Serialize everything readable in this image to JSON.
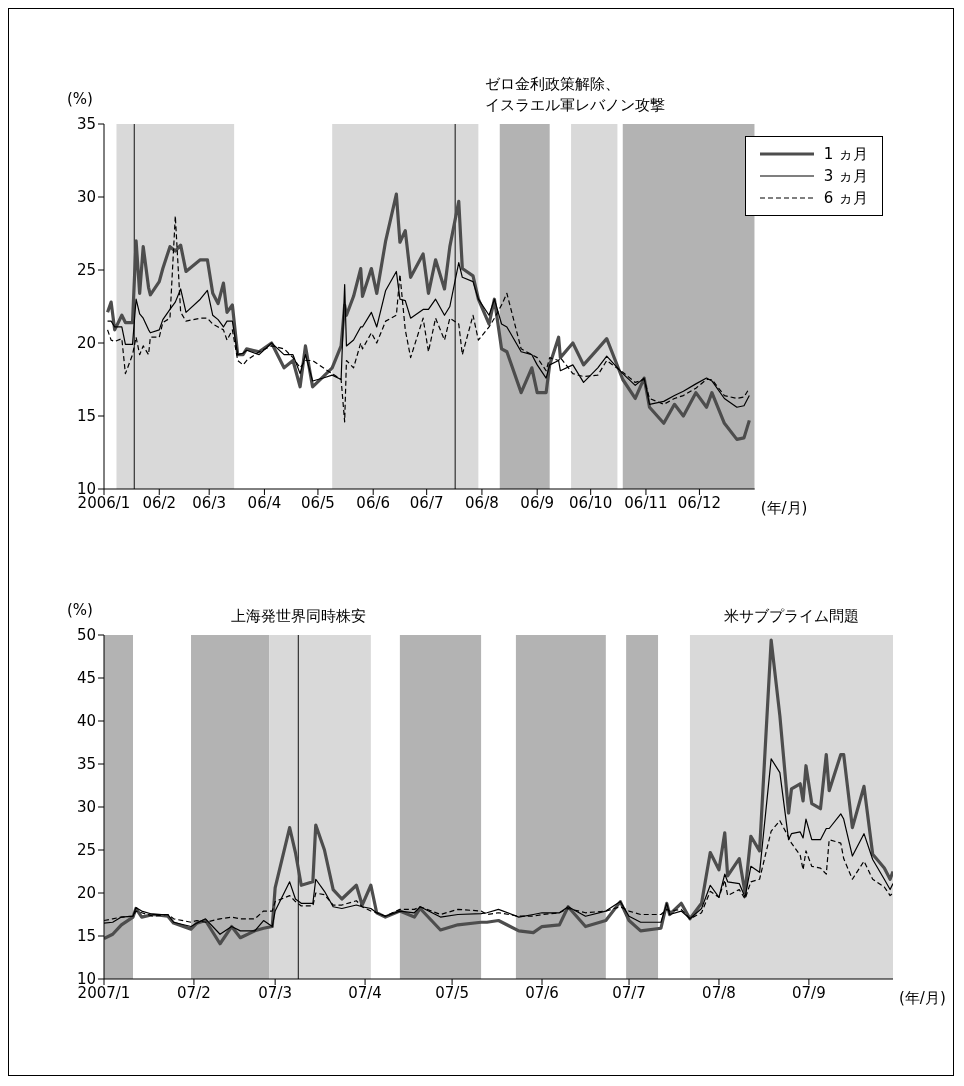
{
  "chart_data": [
    {
      "type": "line",
      "ylabel": "(%)",
      "xlabel": "(年/月)",
      "legend": "top right",
      "xlim": [
        "2006-01-01",
        "2007-01-01"
      ],
      "xticks": [
        {
          "value": "2006-01-01",
          "label": "2006/1"
        },
        {
          "value": "2006-02-01",
          "label": "06/2"
        },
        {
          "value": "2006-03-01",
          "label": "06/3"
        },
        {
          "value": "2006-04-01",
          "label": "06/4"
        },
        {
          "value": "2006-05-01",
          "label": "06/5"
        },
        {
          "value": "2006-06-01",
          "label": "06/6"
        },
        {
          "value": "2006-07-01",
          "label": "06/7"
        },
        {
          "value": "2006-08-01",
          "label": "06/8"
        },
        {
          "value": "2006-09-01",
          "label": "06/9"
        },
        {
          "value": "2006-10-01",
          "label": "06/10"
        },
        {
          "value": "2006-11-01",
          "label": "06/11"
        },
        {
          "value": "2006-12-01",
          "label": "06/12"
        }
      ],
      "ylim": [
        10,
        35
      ],
      "yticks": [
        10,
        15,
        20,
        25,
        30,
        35
      ],
      "bands": [
        {
          "axis": "x",
          "from": "2006-01-08",
          "to": "2006-03-15",
          "color": "#d9d9d9"
        },
        {
          "axis": "x",
          "from": "2006-05-09",
          "to": "2006-07-30",
          "color": "#d9d9d9"
        },
        {
          "axis": "x",
          "from": "2006-08-11",
          "to": "2006-09-08",
          "color": "#b3b3b3"
        },
        {
          "axis": "x",
          "from": "2006-09-20",
          "to": "2006-10-16",
          "color": "#d9d9d9"
        },
        {
          "axis": "x",
          "from": "2006-10-19",
          "to": "2007-01-01",
          "color": "#b3b3b3"
        }
      ],
      "ref_lines": [
        {
          "axis": "x",
          "value": "2006-01-18",
          "color": "#333333"
        },
        {
          "axis": "x",
          "value": "2006-07-17",
          "label": "ゼロ金利政策解除、イスラエル軍レバノン攻撃",
          "color": "#333333"
        }
      ],
      "x": [
        "2006-01-03",
        "2006-01-05",
        "2006-01-07",
        "2006-01-11",
        "2006-01-13",
        "2006-01-17",
        "2006-01-19",
        "2006-01-21",
        "2006-01-23",
        "2006-01-26",
        "2006-01-27",
        "2006-02-01",
        "2006-02-03",
        "2006-02-07",
        "2006-02-10",
        "2006-02-13",
        "2006-02-16",
        "2006-02-24",
        "2006-02-28",
        "2006-03-03",
        "2006-03-06",
        "2006-03-09",
        "2006-03-11",
        "2006-03-14",
        "2006-03-17",
        "2006-03-20",
        "2006-03-22",
        "2006-03-29",
        "2006-04-05",
        "2006-04-12",
        "2006-04-17",
        "2006-04-21",
        "2006-04-24",
        "2006-04-28",
        "2006-05-04",
        "2006-05-09",
        "2006-05-14",
        "2006-05-16",
        "2006-05-17",
        "2006-05-21",
        "2006-05-25",
        "2006-05-26",
        "2006-05-31",
        "2006-06-03",
        "2006-06-08",
        "2006-06-14",
        "2006-06-16",
        "2006-06-19",
        "2006-06-22",
        "2006-06-29",
        "2006-07-02",
        "2006-07-06",
        "2006-07-11",
        "2006-07-14",
        "2006-07-19",
        "2006-07-21",
        "2006-07-27",
        "2006-07-30",
        "2006-08-05",
        "2006-08-08",
        "2006-08-12",
        "2006-08-15",
        "2006-08-23",
        "2006-08-29",
        "2006-09-01",
        "2006-09-06",
        "2006-09-08",
        "2006-09-13",
        "2006-09-14",
        "2006-09-21",
        "2006-09-27",
        "2006-10-05",
        "2006-10-10",
        "2006-10-19",
        "2006-10-26",
        "2006-10-31",
        "2006-11-03",
        "2006-11-11",
        "2006-11-17",
        "2006-11-22",
        "2006-11-29",
        "2006-12-05",
        "2006-12-08",
        "2006-12-15",
        "2006-12-22",
        "2006-12-26",
        "2006-12-29"
      ],
      "series": [
        {
          "name": "1 ヵ月",
          "color": "#4d4d4d",
          "line_style": "solid",
          "values": [
            22.1,
            22.8,
            20.9,
            21.9,
            21.4,
            21.4,
            27.0,
            23.4,
            26.6,
            23.8,
            23.3,
            24.2,
            25.1,
            26.6,
            26.3,
            26.7,
            24.9,
            25.7,
            25.7,
            23.4,
            22.7,
            24.1,
            22.1,
            22.6,
            19.2,
            19.2,
            19.6,
            19.4,
            20.0,
            18.3,
            18.8,
            17.0,
            19.8,
            17.0,
            17.7,
            18.3,
            19.8,
            22.6,
            21.9,
            23.2,
            25.1,
            23.2,
            25.1,
            23.4,
            27.0,
            30.2,
            26.9,
            27.7,
            24.5,
            26.1,
            23.4,
            25.7,
            23.7,
            26.6,
            29.7,
            25.1,
            24.6,
            23.0,
            21.3,
            23.0,
            19.6,
            19.4,
            16.6,
            18.3,
            16.6,
            16.6,
            18.5,
            20.4,
            19.0,
            20.0,
            18.5,
            19.6,
            20.3,
            17.5,
            16.2,
            17.6,
            15.6,
            14.5,
            15.8,
            15.0,
            16.6,
            15.6,
            16.6,
            14.5,
            13.4,
            13.5,
            14.7
          ]
        },
        {
          "name": "3 ヵ月",
          "color": "#000000",
          "line_style": "solid",
          "values": [
            21.5,
            21.5,
            21.1,
            21.1,
            19.9,
            19.9,
            23.0,
            22.0,
            21.7,
            20.9,
            20.7,
            20.9,
            21.6,
            22.3,
            22.8,
            23.7,
            22.1,
            23.0,
            23.6,
            21.9,
            21.6,
            21.1,
            21.5,
            21.5,
            19.2,
            19.3,
            19.5,
            19.2,
            20.0,
            19.2,
            19.2,
            17.9,
            19.2,
            17.4,
            17.6,
            17.8,
            17.5,
            24.0,
            19.8,
            20.2,
            21.1,
            21.1,
            22.1,
            21.1,
            23.6,
            24.9,
            23.0,
            22.9,
            21.7,
            22.3,
            22.3,
            23.0,
            21.9,
            22.5,
            25.5,
            24.5,
            24.2,
            23.0,
            21.9,
            23.0,
            21.3,
            21.1,
            19.4,
            19.2,
            18.5,
            17.6,
            18.5,
            18.8,
            18.1,
            18.5,
            17.3,
            18.3,
            19.1,
            17.9,
            17.1,
            17.6,
            15.8,
            16.0,
            16.4,
            16.7,
            17.2,
            17.6,
            17.4,
            16.2,
            15.6,
            15.7,
            16.4
          ]
        },
        {
          "name": "6 ヵ月",
          "color": "#000000",
          "line_style": "dashed",
          "values": [
            20.9,
            20.2,
            20.1,
            20.3,
            17.9,
            19.2,
            20.4,
            19.2,
            19.8,
            19.2,
            20.4,
            20.4,
            21.4,
            21.7,
            28.7,
            22.1,
            21.5,
            21.7,
            21.7,
            21.3,
            21.1,
            20.9,
            20.2,
            20.9,
            18.8,
            18.5,
            18.8,
            19.4,
            19.8,
            19.6,
            19.0,
            18.3,
            18.8,
            18.8,
            18.3,
            17.9,
            17.5,
            14.6,
            18.8,
            18.3,
            20.0,
            19.6,
            20.7,
            20.0,
            21.5,
            21.9,
            24.7,
            20.9,
            19.0,
            21.7,
            19.4,
            21.7,
            20.2,
            21.7,
            21.3,
            19.2,
            21.9,
            20.2,
            21.1,
            21.7,
            22.6,
            23.4,
            19.6,
            19.2,
            19.0,
            18.1,
            19.0,
            18.8,
            19.0,
            17.9,
            17.7,
            17.8,
            18.8,
            18.0,
            17.3,
            17.5,
            16.2,
            15.8,
            16.2,
            16.4,
            16.9,
            17.5,
            17.5,
            16.4,
            16.2,
            16.3,
            16.9
          ]
        }
      ]
    },
    {
      "type": "line",
      "ylabel": "(%)",
      "xlabel": "(年/月)",
      "xlim": [
        "2007-01-01",
        "2007-09-30"
      ],
      "xticks": [
        {
          "value": "2007-01-01",
          "label": "2007/1"
        },
        {
          "value": "2007-02-01",
          "label": "07/2"
        },
        {
          "value": "2007-03-01",
          "label": "07/3"
        },
        {
          "value": "2007-04-01",
          "label": "07/4"
        },
        {
          "value": "2007-05-01",
          "label": "07/5"
        },
        {
          "value": "2007-06-01",
          "label": "07/6"
        },
        {
          "value": "2007-07-01",
          "label": "07/7"
        },
        {
          "value": "2007-08-01",
          "label": "07/8"
        },
        {
          "value": "2007-09-01",
          "label": "07/9"
        }
      ],
      "ylim": [
        10,
        50
      ],
      "yticks": [
        10,
        15,
        20,
        25,
        30,
        35,
        40,
        45,
        50
      ],
      "bands": [
        {
          "axis": "x",
          "from": "2007-01-01",
          "to": "2007-01-11",
          "color": "#b3b3b3"
        },
        {
          "axis": "x",
          "from": "2007-01-31",
          "to": "2007-02-27",
          "color": "#b3b3b3"
        },
        {
          "axis": "x",
          "from": "2007-02-27",
          "to": "2007-04-03",
          "color": "#d9d9d9"
        },
        {
          "axis": "x",
          "from": "2007-04-13",
          "to": "2007-05-11",
          "color": "#b3b3b3"
        },
        {
          "axis": "x",
          "from": "2007-05-23",
          "to": "2007-06-23",
          "color": "#b3b3b3"
        },
        {
          "axis": "x",
          "from": "2007-06-30",
          "to": "2007-07-11",
          "color": "#b3b3b3"
        },
        {
          "axis": "x",
          "from": "2007-07-22",
          "to": "2007-09-30",
          "label": "米サブプライム問題",
          "color": "#d9d9d9"
        }
      ],
      "ref_lines": [
        {
          "axis": "x",
          "value": "2007-03-09",
          "label": "上海発世界同時株安",
          "color": "#333333"
        }
      ],
      "x": [
        "2007-01-01",
        "2007-01-04",
        "2007-01-07",
        "2007-01-11",
        "2007-01-12",
        "2007-01-14",
        "2007-01-18",
        "2007-01-23",
        "2007-01-25",
        "2007-01-31",
        "2007-02-02",
        "2007-02-05",
        "2007-02-10",
        "2007-02-14",
        "2007-02-17",
        "2007-02-22",
        "2007-02-25",
        "2007-02-28",
        "2007-03-01",
        "2007-03-06",
        "2007-03-08",
        "2007-03-10",
        "2007-03-14",
        "2007-03-15",
        "2007-03-18",
        "2007-03-21",
        "2007-03-24",
        "2007-03-29",
        "2007-03-31",
        "2007-04-03",
        "2007-04-05",
        "2007-04-08",
        "2007-04-13",
        "2007-04-18",
        "2007-04-20",
        "2007-04-27",
        "2007-05-03",
        "2007-05-11",
        "2007-05-13",
        "2007-05-17",
        "2007-05-24",
        "2007-05-29",
        "2007-06-01",
        "2007-06-07",
        "2007-06-10",
        "2007-06-16",
        "2007-06-23",
        "2007-06-28",
        "2007-07-01",
        "2007-07-05",
        "2007-07-12",
        "2007-07-14",
        "2007-07-15",
        "2007-07-19",
        "2007-07-22",
        "2007-07-26",
        "2007-07-29",
        "2007-08-01",
        "2007-08-03",
        "2007-08-04",
        "2007-08-08",
        "2007-08-10",
        "2007-08-12",
        "2007-08-15",
        "2007-08-19",
        "2007-08-22",
        "2007-08-25",
        "2007-08-26",
        "2007-08-29",
        "2007-08-30",
        "2007-08-31",
        "2007-09-02",
        "2007-09-05",
        "2007-09-07",
        "2007-09-08",
        "2007-09-12",
        "2007-09-13",
        "2007-09-16",
        "2007-09-20",
        "2007-09-23",
        "2007-09-27",
        "2007-09-29",
        "2007-09-30"
      ],
      "series": [
        {
          "color": "#4d4d4d",
          "line_style": "solid",
          "values": [
            14.7,
            15.2,
            16.3,
            17.2,
            18.2,
            17.2,
            17.5,
            17.3,
            16.5,
            15.8,
            16.5,
            16.8,
            14.1,
            16.1,
            14.8,
            15.6,
            15.9,
            16.1,
            20.6,
            27.6,
            24.7,
            20.9,
            21.3,
            27.9,
            25.0,
            20.4,
            19.3,
            20.9,
            18.6,
            20.9,
            17.7,
            17.2,
            17.9,
            17.2,
            18.2,
            15.7,
            16.3,
            16.6,
            16.6,
            16.8,
            15.6,
            15.4,
            16.1,
            16.3,
            18.4,
            16.1,
            16.8,
            19.0,
            16.8,
            15.6,
            15.9,
            18.8,
            17.5,
            18.8,
            17.0,
            18.8,
            24.7,
            22.7,
            27.0,
            22.0,
            24.0,
            20.0,
            26.6,
            24.9,
            49.4,
            40.6,
            29.3,
            32.1,
            32.7,
            30.7,
            34.8,
            30.4,
            29.8,
            36.1,
            31.9,
            36.1,
            36.1,
            27.6,
            32.4,
            24.5,
            22.9,
            21.6,
            22.5
          ]
        },
        {
          "color": "#000000",
          "line_style": "solid",
          "values": [
            16.5,
            16.6,
            17.2,
            17.3,
            18.3,
            17.9,
            17.5,
            17.5,
            16.6,
            16.1,
            16.5,
            17.0,
            15.2,
            16.1,
            15.6,
            15.6,
            16.8,
            16.1,
            17.9,
            21.3,
            19.3,
            18.8,
            18.8,
            21.6,
            20.2,
            18.4,
            18.2,
            18.6,
            18.4,
            18.2,
            17.7,
            17.3,
            17.9,
            17.7,
            18.4,
            17.2,
            17.5,
            17.6,
            17.7,
            18.1,
            17.2,
            17.5,
            17.7,
            17.7,
            18.4,
            17.3,
            17.9,
            19.0,
            17.3,
            16.6,
            16.6,
            18.8,
            17.5,
            17.9,
            17.0,
            18.2,
            20.9,
            19.5,
            22.2,
            21.3,
            21.1,
            19.5,
            23.1,
            22.4,
            35.6,
            34.0,
            26.2,
            26.9,
            27.1,
            26.4,
            28.6,
            26.2,
            26.2,
            27.5,
            27.5,
            29.2,
            28.6,
            24.3,
            26.9,
            23.9,
            21.6,
            20.4,
            21.1
          ]
        },
        {
          "color": "#000000",
          "line_style": "dashed",
          "values": [
            16.8,
            17.0,
            17.2,
            17.3,
            17.9,
            17.7,
            17.3,
            17.5,
            17.0,
            16.6,
            16.8,
            16.6,
            17.0,
            17.2,
            17.0,
            17.0,
            17.9,
            17.9,
            19.0,
            19.7,
            19.0,
            18.5,
            18.5,
            20.0,
            19.8,
            18.6,
            18.6,
            19.1,
            18.4,
            17.9,
            17.7,
            17.3,
            18.1,
            18.1,
            18.4,
            17.5,
            18.1,
            17.9,
            17.5,
            17.7,
            17.3,
            17.3,
            17.5,
            17.7,
            18.2,
            17.7,
            17.9,
            18.4,
            17.9,
            17.5,
            17.5,
            18.1,
            17.9,
            18.1,
            17.0,
            17.7,
            20.2,
            19.5,
            21.5,
            19.7,
            20.4,
            19.3,
            21.3,
            21.6,
            27.2,
            28.4,
            26.5,
            25.8,
            24.4,
            22.7,
            24.9,
            23.1,
            22.9,
            22.2,
            26.2,
            25.8,
            24.0,
            21.6,
            23.7,
            21.6,
            20.7,
            19.7,
            20.0
          ]
        }
      ]
    }
  ]
}
